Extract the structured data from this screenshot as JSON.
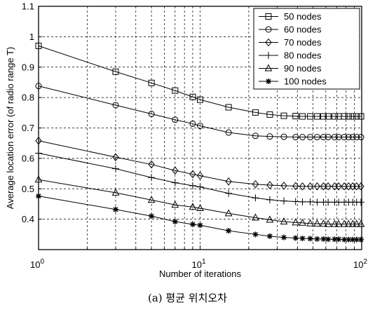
{
  "caption": "(a) 평균 위치오차",
  "chart_data": {
    "type": "line",
    "title": "",
    "xlabel": "Number of iterations",
    "ylabel": "Average location error (of radio range T)",
    "xscale": "log",
    "xlim": [
      1,
      100
    ],
    "ylim": [
      0.3,
      1.1
    ],
    "x_tick_labels": [
      {
        "base": "10",
        "exp": "0",
        "value": 1
      },
      {
        "base": "10",
        "exp": "1",
        "value": 10
      },
      {
        "base": "10",
        "exp": "2",
        "value": 100
      }
    ],
    "y_ticks": [
      0.4,
      0.5,
      0.6,
      0.7,
      0.8,
      0.9,
      1,
      1.1
    ],
    "y_tick_labels": [
      "0.4",
      "0.5",
      "0.6",
      "0.7",
      "0.8",
      "0.9",
      "1",
      "1.1"
    ],
    "grid": true,
    "legend_position": "top-right",
    "series": [
      {
        "name": "50 nodes",
        "marker": "square",
        "x": [
          1,
          3,
          5,
          7,
          9,
          10,
          15,
          22,
          27,
          33,
          39,
          43,
          48,
          53,
          58,
          62,
          68,
          72,
          78,
          83,
          88,
          93,
          99
        ],
        "y": [
          0.97,
          0.885,
          0.848,
          0.823,
          0.802,
          0.793,
          0.768,
          0.751,
          0.744,
          0.74,
          0.739,
          0.738,
          0.738,
          0.738,
          0.738,
          0.738,
          0.738,
          0.738,
          0.738,
          0.738,
          0.738,
          0.738,
          0.738
        ]
      },
      {
        "name": "60 nodes",
        "marker": "circle",
        "x": [
          1,
          3,
          5,
          7,
          9,
          10,
          15,
          22,
          27,
          33,
          39,
          43,
          48,
          53,
          58,
          62,
          68,
          72,
          78,
          83,
          88,
          93,
          99
        ],
        "y": [
          0.838,
          0.775,
          0.746,
          0.727,
          0.714,
          0.707,
          0.685,
          0.674,
          0.672,
          0.671,
          0.67,
          0.67,
          0.67,
          0.67,
          0.67,
          0.67,
          0.67,
          0.67,
          0.67,
          0.67,
          0.67,
          0.67,
          0.67
        ]
      },
      {
        "name": "70 nodes",
        "marker": "diamond",
        "x": [
          1,
          3,
          5,
          7,
          9,
          10,
          15,
          22,
          27,
          33,
          39,
          43,
          48,
          53,
          58,
          62,
          68,
          72,
          78,
          83,
          88,
          93,
          99
        ],
        "y": [
          0.658,
          0.604,
          0.58,
          0.56,
          0.548,
          0.543,
          0.524,
          0.515,
          0.512,
          0.51,
          0.509,
          0.508,
          0.508,
          0.508,
          0.508,
          0.508,
          0.508,
          0.508,
          0.508,
          0.508,
          0.508,
          0.508,
          0.508
        ]
      },
      {
        "name": "80 nodes",
        "marker": "plus",
        "x": [
          1,
          3,
          5,
          7,
          9,
          10,
          15,
          22,
          27,
          33,
          39,
          43,
          48,
          53,
          58,
          62,
          68,
          72,
          78,
          83,
          88,
          93,
          99
        ],
        "y": [
          0.617,
          0.566,
          0.537,
          0.52,
          0.51,
          0.506,
          0.485,
          0.47,
          0.464,
          0.46,
          0.458,
          0.457,
          0.457,
          0.456,
          0.456,
          0.456,
          0.456,
          0.456,
          0.456,
          0.456,
          0.456,
          0.456,
          0.456
        ]
      },
      {
        "name": "90 nodes",
        "marker": "triangle",
        "x": [
          1,
          3,
          5,
          7,
          9,
          10,
          15,
          22,
          27,
          33,
          39,
          43,
          48,
          53,
          58,
          62,
          68,
          72,
          78,
          83,
          88,
          93,
          99
        ],
        "y": [
          0.53,
          0.487,
          0.463,
          0.447,
          0.44,
          0.436,
          0.419,
          0.405,
          0.398,
          0.392,
          0.389,
          0.388,
          0.386,
          0.385,
          0.385,
          0.384,
          0.384,
          0.384,
          0.384,
          0.384,
          0.384,
          0.384,
          0.384
        ]
      },
      {
        "name": "100 nodes",
        "marker": "star",
        "x": [
          1,
          3,
          5,
          7,
          9,
          10,
          15,
          22,
          27,
          33,
          39,
          43,
          48,
          53,
          58,
          62,
          68,
          72,
          78,
          83,
          88,
          93,
          99
        ],
        "y": [
          0.476,
          0.432,
          0.41,
          0.392,
          0.383,
          0.38,
          0.362,
          0.35,
          0.344,
          0.34,
          0.338,
          0.337,
          0.336,
          0.335,
          0.335,
          0.334,
          0.334,
          0.334,
          0.333,
          0.333,
          0.333,
          0.333,
          0.333
        ]
      }
    ]
  }
}
